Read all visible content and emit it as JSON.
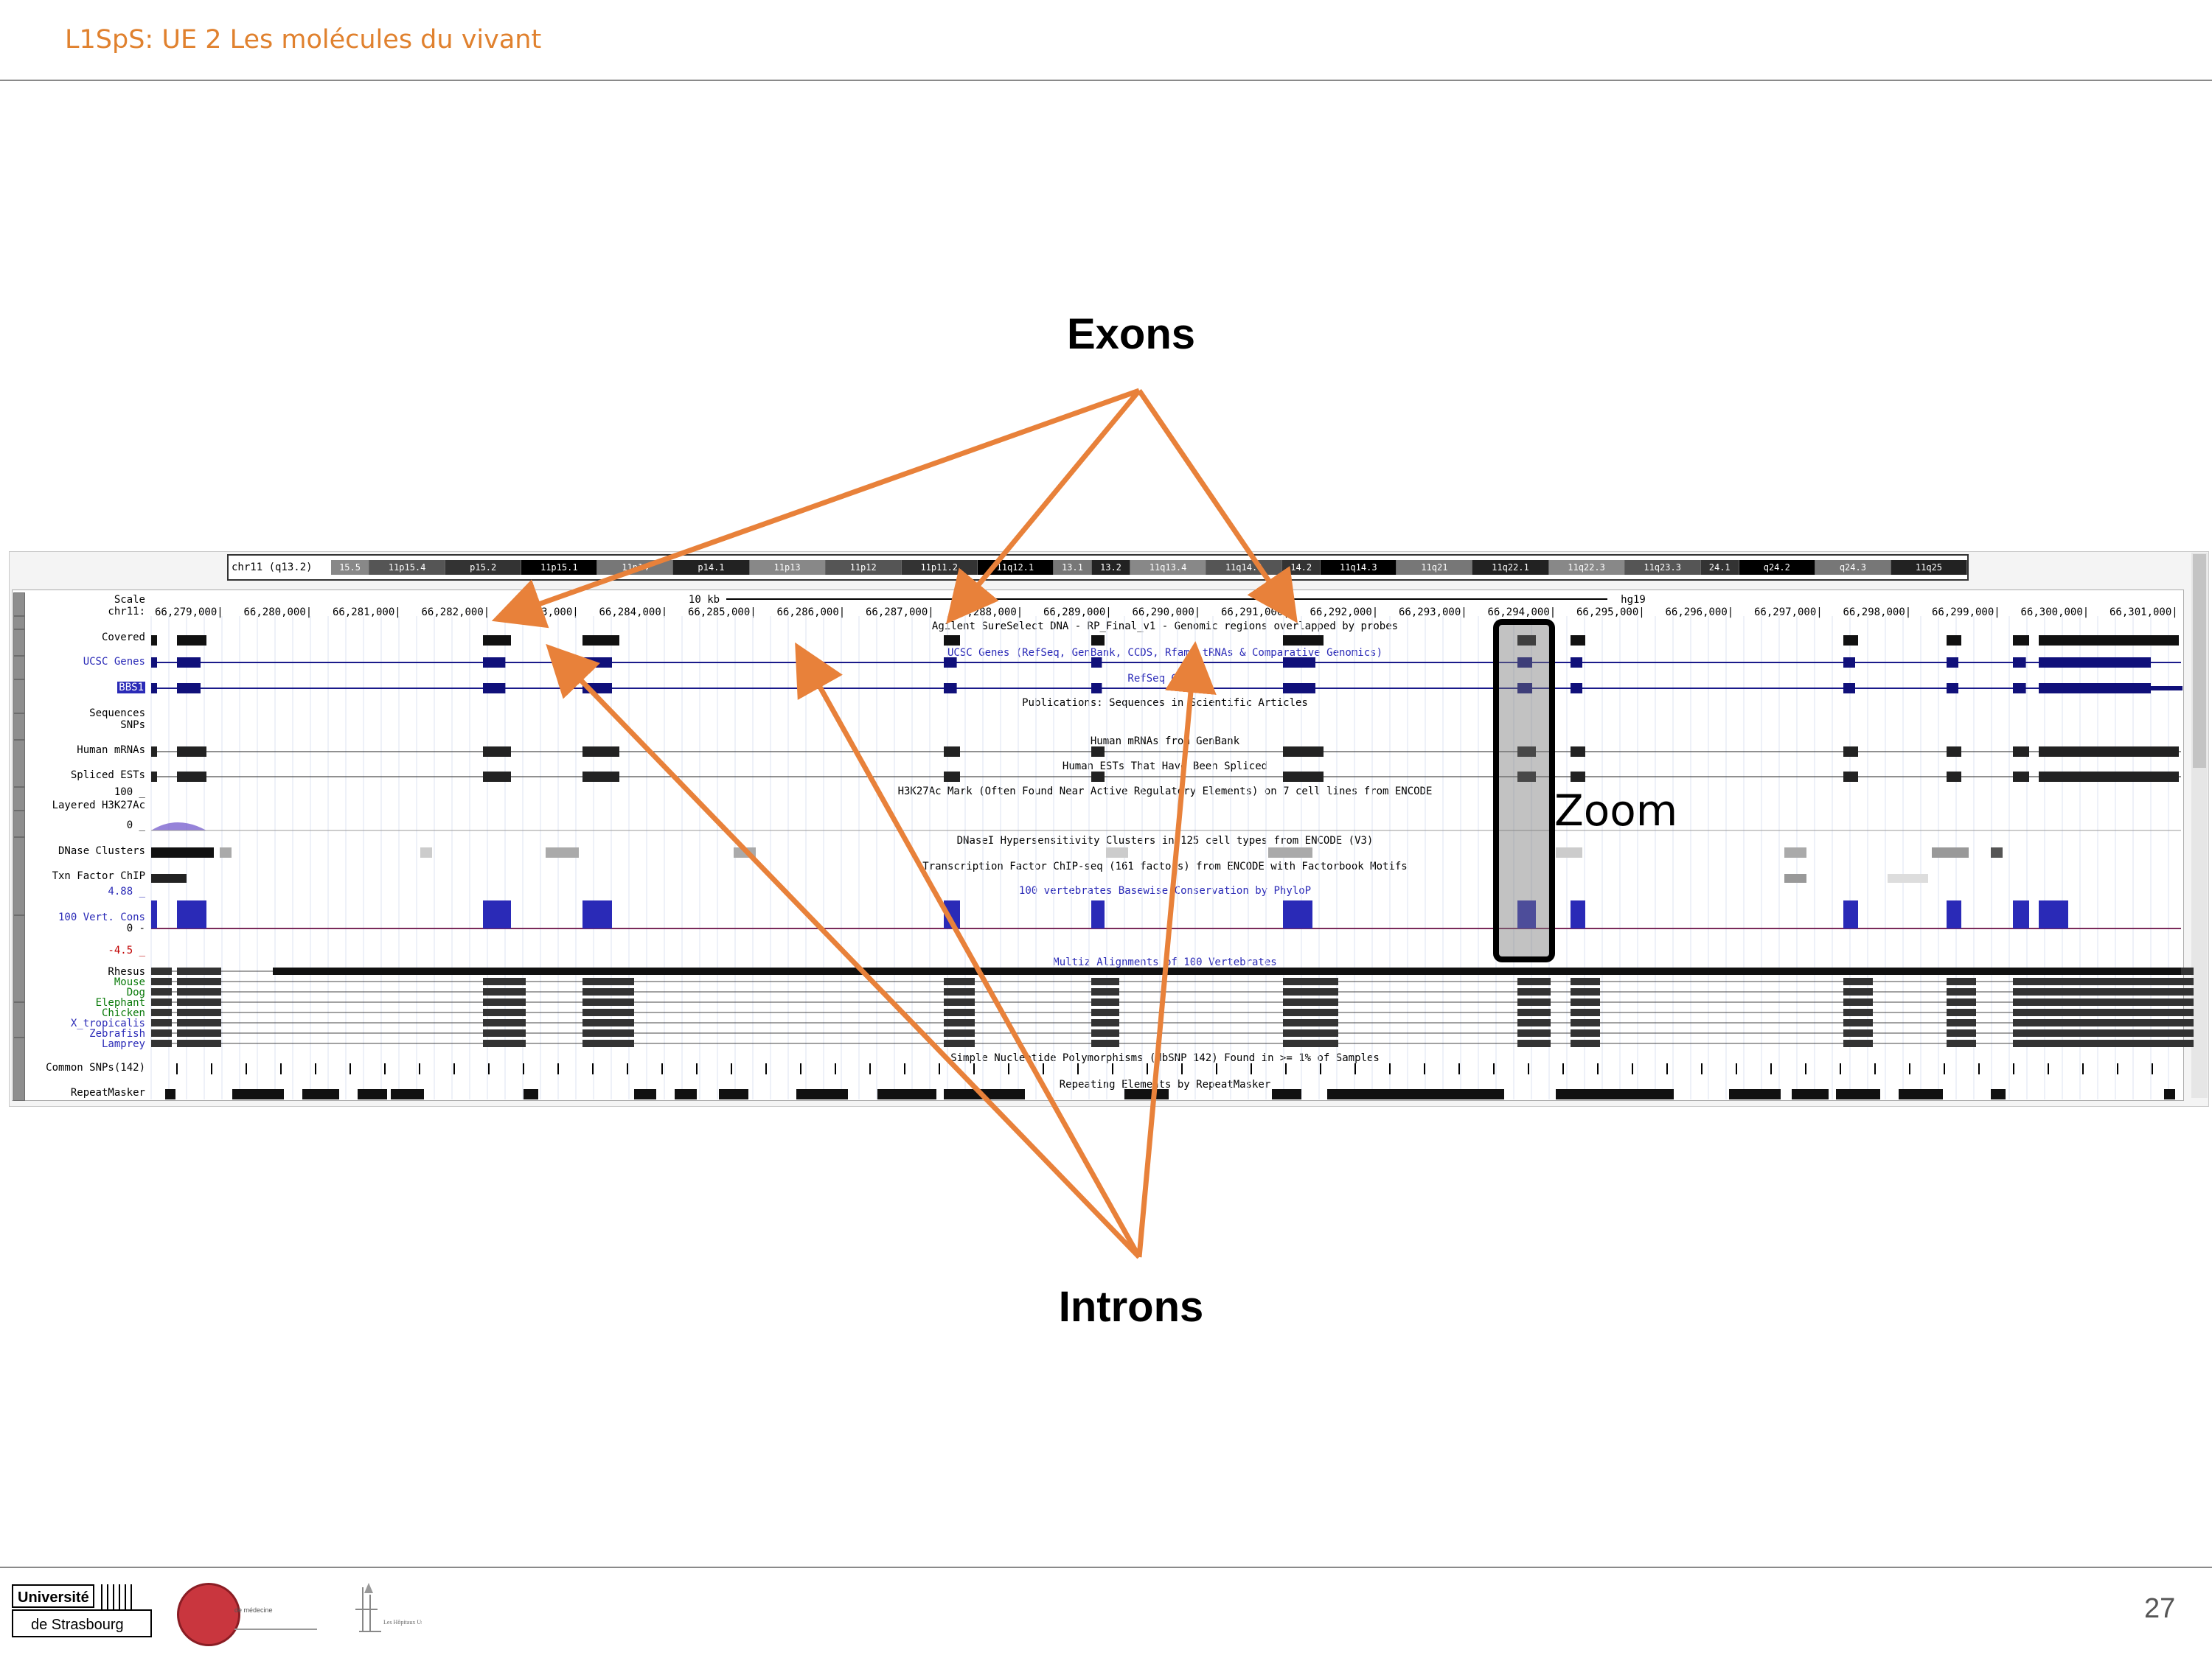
{
  "slide": {
    "title": "L1SpS: UE 2 Les molécules du vivant",
    "page_number": "27"
  },
  "annotations": {
    "exons_label": "Exons",
    "introns_label": "Introns",
    "zoom_label": "Zoom",
    "arrow_color": "#e8813a"
  },
  "genome_browser": {
    "ideogram": {
      "chrom_label": "chr11 (q13.2)",
      "bands": [
        "15.5",
        "11p15.4",
        "p15.2",
        "11p15.1",
        "11p14",
        "p14.1",
        "11p13",
        "11p12",
        "11p11.2",
        "11q12.1",
        "13.1",
        "13.2",
        "11q13.4",
        "11q14.1",
        "14.2",
        "11q14.3",
        "11q21",
        "11q22.1",
        "11q22.3",
        "11q23.3",
        "24.1",
        "q24.2",
        "q24.3",
        "11q25"
      ]
    },
    "scale": {
      "label": "Scale",
      "chrom": "chr11:",
      "bar_label": "10 kb",
      "assembly": "hg19"
    },
    "coordinates": [
      "66,279,000|",
      "66,280,000|",
      "66,281,000|",
      "66,282,000|",
      "66,283,000|",
      "66,284,000|",
      "66,285,000|",
      "66,286,000|",
      "66,287,000|",
      "66,288,000|",
      "66,289,000|",
      "66,290,000|",
      "66,291,000|",
      "66,292,000|",
      "66,293,000|",
      "66,294,000|",
      "66,295,000|",
      "66,296,000|",
      "66,297,000|",
      "66,298,000|",
      "66,299,000|",
      "66,300,000|",
      "66,301,000|"
    ],
    "track_labels": {
      "covered": "Covered",
      "ucsc_genes": "UCSC Genes",
      "refseq": "BBS1",
      "sequences": "Sequences",
      "snps": "SNPs",
      "human_mrnas": "Human mRNAs",
      "spliced_ests": "Spliced ESTs",
      "h3k27_max": "100 _",
      "layered_h3k27ac": "Layered H3K27Ac",
      "h3k27_min": "0 _",
      "dnase_clusters": "DNase Clusters",
      "txn_factor": "Txn Factor ChIP",
      "cons_max": "4.88 _",
      "vert_cons": "100 Vert. Cons",
      "cons_zero": "0 -",
      "cons_min": "-4.5 _",
      "rhesus": "Rhesus",
      "mouse": "Mouse",
      "dog": "Dog",
      "elephant": "Elephant",
      "chicken": "Chicken",
      "x_tropicalis": "X_tropicalis",
      "zebrafish": "Zebrafish",
      "lamprey": "Lamprey",
      "common_snps": "Common SNPs(142)",
      "repeatmasker": "RepeatMasker"
    },
    "track_descriptions": {
      "agilent": "Agilent SureSelect DNA - RP_Final_v1 - Genomic regions overlapped by probes",
      "ucsc_genes": "UCSC Genes (RefSeq, GenBank, CCDS, Rfam, tRNAs & Comparative Genomics)",
      "refseq": "RefSeq Genes",
      "publications": "Publications: Sequences in Scientific Articles",
      "mrna": "Human mRNAs from GenBank",
      "ests": "Human ESTs That Have Been Spliced",
      "h3k27": "H3K27Ac Mark (Often Found Near Active Regulatory Elements) on 7 cell lines from ENCODE",
      "dnase": "DNaseI Hypersensitivity Clusters in 125 cell types from ENCODE (V3)",
      "tfbs": "Transcription Factor ChIP-seq (161 factors) from ENCODE with Factorbook Motifs",
      "phylop": "100 vertebrates Basewise Conservation by PhyloP",
      "multiz": "Multiz Alignments of 100 Vertebrates",
      "snps": "Simple Nucleotide Polymorphisms (dbSNP 142) Found in >= 1% of Samples",
      "repeats": "Repeating Elements by RepeatMasker"
    }
  },
  "footer": {
    "university_top": "Université",
    "university_bottom": "de Strasbourg",
    "faculty_text": "de médecine",
    "hospital_text": "Les Hôpitaux Universitaires de STRASBOURG"
  }
}
